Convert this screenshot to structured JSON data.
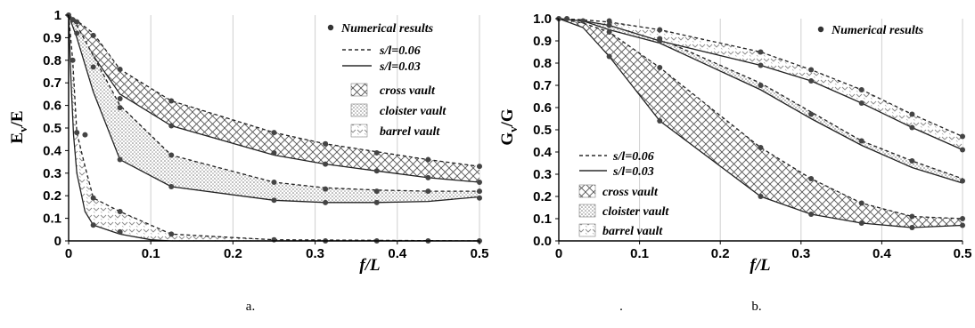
{
  "chart_data": [
    {
      "type": "line",
      "panel": "a",
      "caption": "a.",
      "xlabel": "f/L",
      "ylabel_main": "E",
      "ylabel_sub": "v",
      "ylabel_tail": "/E",
      "xlim": [
        0,
        0.5
      ],
      "ylim": [
        0,
        1
      ],
      "xticks": [
        "0",
        "0.1",
        "0.2",
        "0.3",
        "0.4",
        "0.5"
      ],
      "yticks": [
        "0",
        "0.1",
        "0.2",
        "0.3",
        "0.4",
        "0.5",
        "0.6",
        "0.7",
        "0.8",
        "0.9",
        "1"
      ],
      "grid": "vertical",
      "legend_position": "top-right",
      "legend": {
        "numerical": "Numerical results",
        "dashed": "s/l=0.06",
        "solid": "s/l=0.03",
        "cross": "cross vault",
        "cloister": "cloister vault",
        "barrel": "barrel vault"
      },
      "bands": [
        {
          "name": "cross vault",
          "pattern": "cross",
          "upper": [
            [
              0,
              1
            ],
            [
              0.01,
              0.975
            ],
            [
              0.03,
              0.92
            ],
            [
              0.0625,
              0.76
            ],
            [
              0.125,
              0.62
            ],
            [
              0.25,
              0.48
            ],
            [
              0.3125,
              0.43
            ],
            [
              0.375,
              0.395
            ],
            [
              0.4375,
              0.36
            ],
            [
              0.5,
              0.33
            ]
          ],
          "lower": [
            [
              0,
              1
            ],
            [
              0.01,
              0.93
            ],
            [
              0.03,
              0.82
            ],
            [
              0.0625,
              0.65
            ],
            [
              0.125,
              0.51
            ],
            [
              0.25,
              0.38
            ],
            [
              0.3125,
              0.34
            ],
            [
              0.375,
              0.31
            ],
            [
              0.4375,
              0.28
            ],
            [
              0.5,
              0.26
            ]
          ]
        },
        {
          "name": "cloister vault",
          "pattern": "dots",
          "upper": [
            [
              0,
              1
            ],
            [
              0.01,
              0.955
            ],
            [
              0.03,
              0.82
            ],
            [
              0.0625,
              0.6
            ],
            [
              0.125,
              0.38
            ],
            [
              0.25,
              0.26
            ],
            [
              0.3125,
              0.235
            ],
            [
              0.375,
              0.225
            ],
            [
              0.4375,
              0.22
            ],
            [
              0.5,
              0.22
            ]
          ],
          "lower": [
            [
              0,
              1
            ],
            [
              0.01,
              0.9
            ],
            [
              0.03,
              0.66
            ],
            [
              0.0625,
              0.36
            ],
            [
              0.125,
              0.24
            ],
            [
              0.25,
              0.18
            ],
            [
              0.3125,
              0.17
            ],
            [
              0.375,
              0.17
            ],
            [
              0.4375,
              0.175
            ],
            [
              0.5,
              0.195
            ]
          ]
        },
        {
          "name": "barrel vault",
          "pattern": "chevron",
          "upper": [
            [
              0,
              1
            ],
            [
              0.005,
              0.8
            ],
            [
              0.01,
              0.48
            ],
            [
              0.02,
              0.33
            ],
            [
              0.03,
              0.19
            ],
            [
              0.0625,
              0.13
            ],
            [
              0.125,
              0.03
            ],
            [
              0.25,
              0.005
            ],
            [
              0.5,
              0
            ]
          ],
          "lower": [
            [
              0,
              1
            ],
            [
              0.003,
              0.7
            ],
            [
              0.006,
              0.47
            ],
            [
              0.01,
              0.3
            ],
            [
              0.02,
              0.13
            ],
            [
              0.03,
              0.07
            ],
            [
              0.0625,
              0.03
            ],
            [
              0.1,
              0.005
            ],
            [
              0.125,
              0
            ],
            [
              0.5,
              0
            ]
          ]
        }
      ],
      "numerical_points": [
        [
          0,
          1
        ],
        [
          0.005,
          0.98
        ],
        [
          0.01,
          0.97
        ],
        [
          0.03,
          0.91
        ],
        [
          0.0625,
          0.76
        ],
        [
          0.125,
          0.62
        ],
        [
          0.25,
          0.48
        ],
        [
          0.3125,
          0.43
        ],
        [
          0.375,
          0.39
        ],
        [
          0.4375,
          0.36
        ],
        [
          0.5,
          0.33
        ],
        [
          0.01,
          0.92
        ],
        [
          0.0625,
          0.63
        ],
        [
          0.125,
          0.51
        ],
        [
          0.25,
          0.39
        ],
        [
          0.3125,
          0.34
        ],
        [
          0.375,
          0.31
        ],
        [
          0.4375,
          0.28
        ],
        [
          0.5,
          0.26
        ],
        [
          0.03,
          0.77
        ],
        [
          0.0625,
          0.59
        ],
        [
          0.125,
          0.38
        ],
        [
          0.25,
          0.26
        ],
        [
          0.3125,
          0.23
        ],
        [
          0.375,
          0.22
        ],
        [
          0.4375,
          0.22
        ],
        [
          0.5,
          0.22
        ],
        [
          0.0625,
          0.36
        ],
        [
          0.125,
          0.24
        ],
        [
          0.25,
          0.18
        ],
        [
          0.3125,
          0.17
        ],
        [
          0.375,
          0.17
        ],
        [
          0.5,
          0.19
        ],
        [
          0.005,
          0.8
        ],
        [
          0.01,
          0.48
        ],
        [
          0.02,
          0.47
        ],
        [
          0.03,
          0.19
        ],
        [
          0.0625,
          0.13
        ],
        [
          0.125,
          0.03
        ],
        [
          0.25,
          0.005
        ],
        [
          0.3125,
          0
        ],
        [
          0.375,
          0
        ],
        [
          0.4375,
          0
        ],
        [
          0.5,
          0
        ],
        [
          0.0625,
          0.04
        ],
        [
          0.03,
          0.07
        ]
      ]
    },
    {
      "type": "line",
      "panel": "b",
      "caption": "b.",
      "xlabel": "f/L",
      "ylabel_main": "G",
      "ylabel_sub": "v",
      "ylabel_tail": "/G",
      "xlim": [
        0,
        0.5
      ],
      "ylim": [
        0,
        1
      ],
      "xticks": [
        "0",
        "0.1",
        "0.2",
        "0.3",
        "0.4",
        "0.5"
      ],
      "yticks": [
        "0.0",
        "0.1",
        "0.2",
        "0.3",
        "0.4",
        "0.5",
        "0.6",
        "0.7",
        "0.8",
        "0.9",
        "1.0"
      ],
      "grid": "vertical",
      "legend_position": "top-right / bottom-left",
      "legend": {
        "numerical": "Numerical results",
        "dashed": "s/l=0.06",
        "solid": "s/l=0.03",
        "cross": "cross vault",
        "cloister": "cloister vault",
        "barrel": "barrel vault"
      },
      "bands": [
        {
          "name": "cross vault",
          "pattern": "cross",
          "upper": [
            [
              0,
              1
            ],
            [
              0.03,
              0.98
            ],
            [
              0.0625,
              0.94
            ],
            [
              0.125,
              0.78
            ],
            [
              0.25,
              0.42
            ],
            [
              0.3125,
              0.28
            ],
            [
              0.375,
              0.17
            ],
            [
              0.4375,
              0.11
            ],
            [
              0.5,
              0.1
            ]
          ],
          "lower": [
            [
              0,
              1
            ],
            [
              0.03,
              0.96
            ],
            [
              0.0625,
              0.83
            ],
            [
              0.125,
              0.54
            ],
            [
              0.25,
              0.2
            ],
            [
              0.3125,
              0.12
            ],
            [
              0.375,
              0.08
            ],
            [
              0.4375,
              0.06
            ],
            [
              0.5,
              0.07
            ]
          ]
        },
        {
          "name": "cloister vault",
          "pattern": "dots",
          "upper": [
            [
              0,
              1
            ],
            [
              0.03,
              0.995
            ],
            [
              0.0625,
              0.97
            ],
            [
              0.125,
              0.91
            ],
            [
              0.25,
              0.71
            ],
            [
              0.3125,
              0.58
            ],
            [
              0.375,
              0.45
            ],
            [
              0.4375,
              0.36
            ],
            [
              0.5,
              0.28
            ]
          ],
          "lower": [
            [
              0,
              1
            ],
            [
              0.03,
              0.99
            ],
            [
              0.0625,
              0.95
            ],
            [
              0.125,
              0.89
            ],
            [
              0.25,
              0.68
            ],
            [
              0.3125,
              0.55
            ],
            [
              0.375,
              0.43
            ],
            [
              0.4375,
              0.33
            ],
            [
              0.5,
              0.26
            ]
          ]
        },
        {
          "name": "barrel vault",
          "pattern": "chevron",
          "upper": [
            [
              0,
              1
            ],
            [
              0.03,
              0.995
            ],
            [
              0.0625,
              0.985
            ],
            [
              0.125,
              0.95
            ],
            [
              0.25,
              0.85
            ],
            [
              0.3125,
              0.77
            ],
            [
              0.375,
              0.68
            ],
            [
              0.4375,
              0.57
            ],
            [
              0.5,
              0.47
            ]
          ],
          "lower": [
            [
              0,
              1
            ],
            [
              0.03,
              0.99
            ],
            [
              0.0625,
              0.97
            ],
            [
              0.125,
              0.9
            ],
            [
              0.25,
              0.79
            ],
            [
              0.3125,
              0.72
            ],
            [
              0.375,
              0.62
            ],
            [
              0.4375,
              0.51
            ],
            [
              0.5,
              0.41
            ]
          ]
        }
      ],
      "numerical_points": [
        [
          0,
          1
        ],
        [
          0.01,
          1
        ],
        [
          0.03,
          0.99
        ],
        [
          0.0625,
          0.99
        ],
        [
          0.125,
          0.95
        ],
        [
          0.25,
          0.85
        ],
        [
          0.3125,
          0.77
        ],
        [
          0.375,
          0.68
        ],
        [
          0.4375,
          0.57
        ],
        [
          0.5,
          0.47
        ],
        [
          0.125,
          0.91
        ],
        [
          0.25,
          0.79
        ],
        [
          0.3125,
          0.72
        ],
        [
          0.375,
          0.62
        ],
        [
          0.4375,
          0.51
        ],
        [
          0.5,
          0.41
        ],
        [
          0.0625,
          0.97
        ],
        [
          0.125,
          0.9
        ],
        [
          0.25,
          0.7
        ],
        [
          0.3125,
          0.57
        ],
        [
          0.375,
          0.45
        ],
        [
          0.4375,
          0.36
        ],
        [
          0.5,
          0.27
        ],
        [
          0.0625,
          0.94
        ],
        [
          0.125,
          0.78
        ],
        [
          0.25,
          0.42
        ],
        [
          0.3125,
          0.28
        ],
        [
          0.375,
          0.17
        ],
        [
          0.4375,
          0.11
        ],
        [
          0.5,
          0.1
        ],
        [
          0.0625,
          0.83
        ],
        [
          0.125,
          0.54
        ],
        [
          0.25,
          0.2
        ],
        [
          0.3125,
          0.12
        ],
        [
          0.375,
          0.08
        ],
        [
          0.4375,
          0.06
        ],
        [
          0.5,
          0.07
        ]
      ]
    }
  ],
  "separator_mark": "."
}
